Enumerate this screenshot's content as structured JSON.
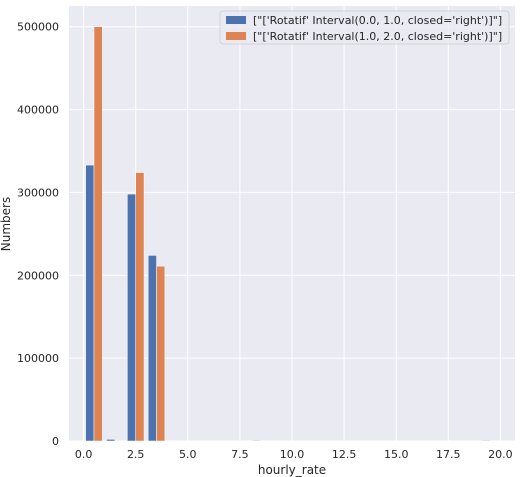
{
  "chart_data": {
    "type": "bar",
    "title": "",
    "xlabel": "hourly_rate",
    "ylabel": "Numbers",
    "xlim": [
      -0.7,
      20.7
    ],
    "ylim": [
      0,
      525000
    ],
    "xticks": [
      "0.0",
      "2.5",
      "5.0",
      "7.5",
      "10.0",
      "12.5",
      "15.0",
      "17.5",
      "20.0"
    ],
    "yticks": [
      "0",
      "100000",
      "200000",
      "300000",
      "400000",
      "500000"
    ],
    "bar_width": 0.4,
    "grid": true,
    "legend_position": "top-right",
    "series": [
      {
        "name": "[\"['Rotatif' Interval(0.0, 1.0, closed='right')]\"]",
        "color": "#4c72b0",
        "x": [
          0.5,
          1.5,
          2.5,
          3.5,
          4.5,
          8.5,
          19.5
        ],
        "values": [
          333000,
          2000,
          298000,
          224000,
          500,
          800,
          800
        ]
      },
      {
        "name": "[\"['Rotatif' Interval(1.0, 2.0, closed='right')]\"]",
        "color": "#dd8452",
        "x": [
          0.5,
          2.5,
          3.5
        ],
        "values": [
          500000,
          324000,
          211000
        ]
      }
    ]
  }
}
